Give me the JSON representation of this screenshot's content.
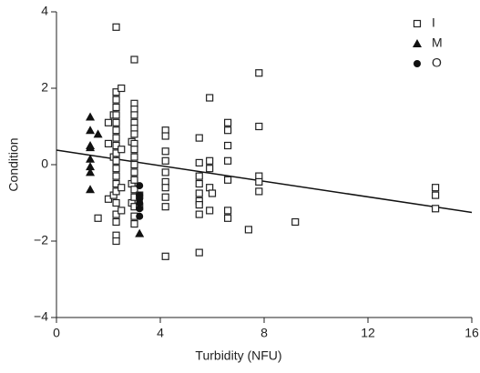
{
  "chart_data": {
    "type": "scatter",
    "x_label": "Turbidity (NFU)",
    "y_label": "Condition",
    "xlim": [
      0,
      16
    ],
    "ylim": [
      -4,
      4
    ],
    "xticks": [
      0,
      4,
      8,
      12,
      16
    ],
    "yticks": [
      {
        "value": -4,
        "label": "−4"
      },
      {
        "value": -2,
        "label": "−2"
      },
      0,
      2,
      4
    ],
    "legend": "top-right",
    "series": [
      {
        "name": "I",
        "marker": "open-square",
        "color": "#222222",
        "x": [
          1.6,
          2.0,
          2.0,
          2.0,
          2.2,
          2.2,
          2.2,
          2.3,
          2.3,
          2.3,
          2.3,
          2.3,
          2.3,
          2.3,
          2.3,
          2.3,
          2.3,
          2.3,
          2.3,
          2.3,
          2.3,
          2.3,
          2.3,
          2.3,
          2.3,
          2.3,
          2.3,
          2.5,
          2.5,
          2.5,
          2.5,
          2.9,
          2.9,
          2.9,
          3.0,
          3.0,
          3.0,
          3.0,
          3.0,
          3.0,
          3.0,
          3.0,
          3.0,
          3.0,
          3.0,
          3.0,
          3.0,
          3.0,
          3.0,
          3.0,
          3.0,
          3.0,
          3.2,
          3.2,
          4.2,
          4.2,
          4.2,
          4.2,
          4.2,
          4.2,
          4.2,
          4.2,
          4.2,
          4.2,
          5.5,
          5.5,
          5.5,
          5.5,
          5.5,
          5.5,
          5.5,
          5.5,
          5.5,
          5.9,
          5.9,
          5.9,
          5.9,
          5.9,
          6.0,
          6.6,
          6.6,
          6.6,
          6.6,
          6.6,
          6.6,
          6.6,
          7.4,
          7.8,
          7.8,
          7.8,
          7.8,
          7.8,
          9.2,
          14.6,
          14.6,
          14.6
        ],
        "y": [
          -1.4,
          -0.9,
          1.1,
          0.55,
          1.3,
          0.2,
          -0.8,
          3.6,
          1.9,
          1.7,
          1.5,
          1.3,
          1.1,
          0.9,
          0.7,
          0.5,
          0.3,
          0.1,
          -0.1,
          -0.3,
          -0.5,
          -0.7,
          -1.0,
          -1.3,
          -1.5,
          -1.85,
          -2.0,
          2.0,
          0.4,
          -0.6,
          -1.2,
          0.6,
          -0.5,
          -1.0,
          2.75,
          1.6,
          1.45,
          1.3,
          1.1,
          0.95,
          0.8,
          0.55,
          0.4,
          0.2,
          0.0,
          -0.2,
          -0.4,
          -0.65,
          -0.85,
          -1.1,
          -1.35,
          -1.55,
          -0.8,
          -1.1,
          0.9,
          0.75,
          0.35,
          0.1,
          -0.2,
          -0.45,
          -0.6,
          -0.85,
          -1.1,
          -2.4,
          0.7,
          0.05,
          -0.3,
          -0.5,
          -0.75,
          -0.95,
          -1.05,
          -1.3,
          -2.3,
          1.75,
          0.1,
          -0.1,
          -0.6,
          -1.2,
          -0.75,
          1.1,
          0.9,
          0.5,
          0.1,
          -0.4,
          -1.2,
          -1.4,
          -1.7,
          2.4,
          1.0,
          -0.3,
          -0.45,
          -0.7,
          -1.5,
          -0.6,
          -0.8,
          -1.15
        ]
      },
      {
        "name": "M",
        "marker": "triangle",
        "color": "#111111",
        "x": [
          1.3,
          1.3,
          1.3,
          1.3,
          1.3,
          1.3,
          1.3,
          1.3,
          1.6,
          3.2
        ],
        "y": [
          1.25,
          0.9,
          0.5,
          0.45,
          0.15,
          -0.05,
          -0.2,
          -0.65,
          0.8,
          -1.8
        ]
      },
      {
        "name": "O",
        "marker": "circle",
        "color": "#111111",
        "x": [
          3.2,
          3.2,
          3.2,
          3.2,
          3.2,
          3.2
        ],
        "y": [
          -0.55,
          -0.8,
          -0.9,
          -1.0,
          -1.15,
          -1.35
        ]
      }
    ],
    "trend_line": {
      "x": [
        0,
        16
      ],
      "y": [
        0.38,
        -1.25
      ],
      "color": "#111111"
    }
  }
}
